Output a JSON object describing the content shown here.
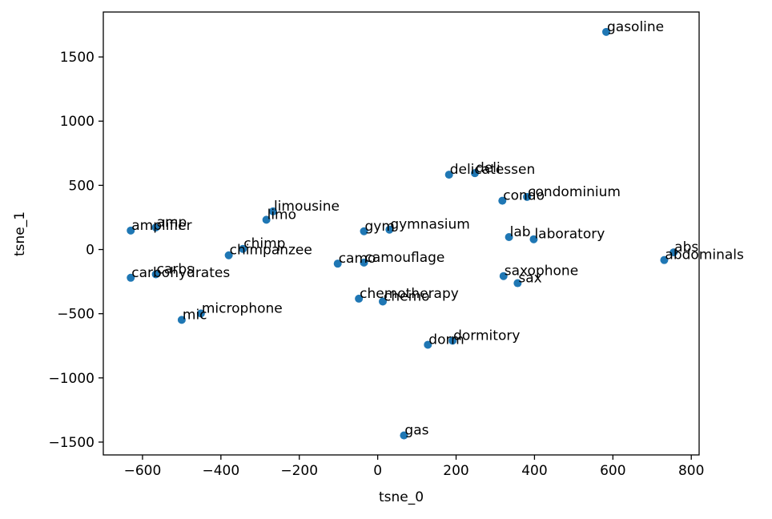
{
  "chart_data": {
    "type": "scatter",
    "title": "",
    "xlabel": "tsne_0",
    "ylabel": "tsne_1",
    "xlim": [
      -700,
      820
    ],
    "ylim": [
      -1600,
      1850
    ],
    "xticks": [
      -600,
      -400,
      -200,
      0,
      200,
      400,
      600,
      800
    ],
    "yticks": [
      -1500,
      -1000,
      -500,
      0,
      500,
      1000,
      1500
    ],
    "xtick_labels": [
      "−600",
      "−400",
      "−200",
      "0",
      "200",
      "400",
      "600",
      "800"
    ],
    "ytick_labels": [
      "−1500",
      "−1000",
      "−500",
      "0",
      "500",
      "1000",
      "1500"
    ],
    "color": "#1f77b4",
    "grid": false,
    "points": [
      {
        "label": "gasoline",
        "x": 583,
        "y": 1695
      },
      {
        "label": "deli",
        "x": 248,
        "y": 595
      },
      {
        "label": "delicatessen",
        "x": 182,
        "y": 583
      },
      {
        "label": "condo",
        "x": 318,
        "y": 380
      },
      {
        "label": "condominium",
        "x": 381,
        "y": 410
      },
      {
        "label": "limousine",
        "x": -267,
        "y": 297
      },
      {
        "label": "limo",
        "x": -284,
        "y": 232
      },
      {
        "label": "amp",
        "x": -566,
        "y": 172
      },
      {
        "label": "amplifier",
        "x": -630,
        "y": 148
      },
      {
        "label": "gym",
        "x": -35,
        "y": 142
      },
      {
        "label": "gymnasium",
        "x": 30,
        "y": 155
      },
      {
        "label": "lab",
        "x": 335,
        "y": 97
      },
      {
        "label": "laboratory",
        "x": 398,
        "y": 80
      },
      {
        "label": "abs",
        "x": 755,
        "y": -22
      },
      {
        "label": "abdominals",
        "x": 731,
        "y": -82
      },
      {
        "label": "chimp",
        "x": -344,
        "y": 5
      },
      {
        "label": "chimpanzee",
        "x": -380,
        "y": -45
      },
      {
        "label": "camo",
        "x": -102,
        "y": -110
      },
      {
        "label": "camouflage",
        "x": -35,
        "y": -102
      },
      {
        "label": "carbs",
        "x": -566,
        "y": -193
      },
      {
        "label": "carbohydrates",
        "x": -630,
        "y": -220
      },
      {
        "label": "saxophone",
        "x": 321,
        "y": -207
      },
      {
        "label": "sax",
        "x": 357,
        "y": -262
      },
      {
        "label": "chemotherapy",
        "x": -48,
        "y": -383
      },
      {
        "label": "chemo",
        "x": 13,
        "y": -405
      },
      {
        "label": "microphone",
        "x": -451,
        "y": -498
      },
      {
        "label": "mic",
        "x": -500,
        "y": -548
      },
      {
        "label": "dorm",
        "x": 128,
        "y": -742
      },
      {
        "label": "dormitory",
        "x": 191,
        "y": -710
      },
      {
        "label": "gas",
        "x": 67,
        "y": -1448
      }
    ]
  }
}
